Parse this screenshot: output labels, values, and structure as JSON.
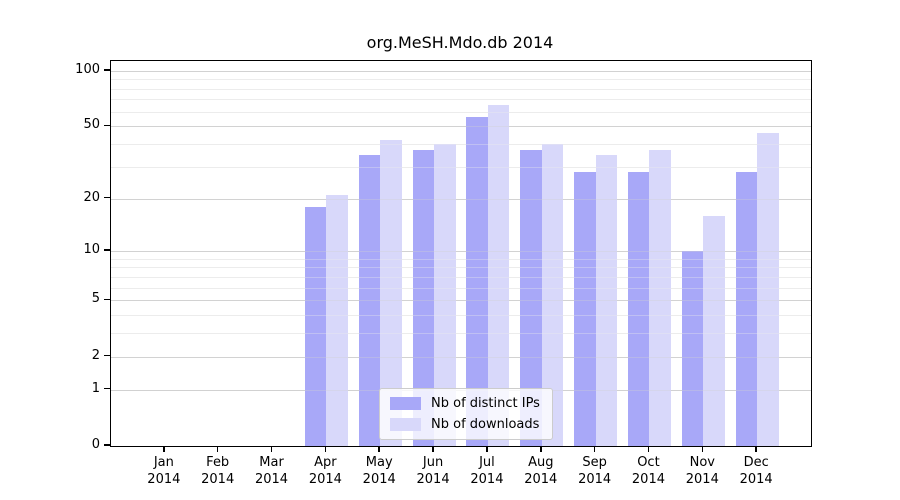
{
  "chart_data": {
    "type": "bar",
    "title": "org.MeSH.Mdo.db 2014",
    "year_label": "2014",
    "categories": [
      "Jan",
      "Feb",
      "Mar",
      "Apr",
      "May",
      "Jun",
      "Jul",
      "Aug",
      "Sep",
      "Oct",
      "Nov",
      "Dec"
    ],
    "series": [
      {
        "name": "Nb of distinct IPs",
        "color": "#a8a8f8",
        "values": [
          0,
          0,
          0,
          18,
          35,
          37,
          56,
          37,
          28,
          28,
          10,
          28
        ]
      },
      {
        "name": "Nb of downloads",
        "color": "#d8d8fa",
        "values": [
          0,
          0,
          0,
          21,
          42,
          40,
          65,
          40,
          35,
          37,
          16,
          46
        ]
      }
    ],
    "y_axis": {
      "scale": "log1p",
      "major_ticks": [
        0,
        1,
        2,
        5,
        10,
        20,
        50,
        100
      ],
      "minor_ticks": [
        3,
        4,
        6,
        7,
        8,
        9,
        30,
        40,
        60,
        70,
        80,
        90
      ],
      "ylim": [
        0,
        113
      ]
    },
    "x_axis": {
      "tick_label_format": "month over year"
    },
    "legend_position": "bottom-center",
    "grid": true
  },
  "colors": {
    "major_grid": "#d2d2d2",
    "minor_grid": "#ececec",
    "axis": "#000000",
    "legend_border": "#cccccc"
  }
}
